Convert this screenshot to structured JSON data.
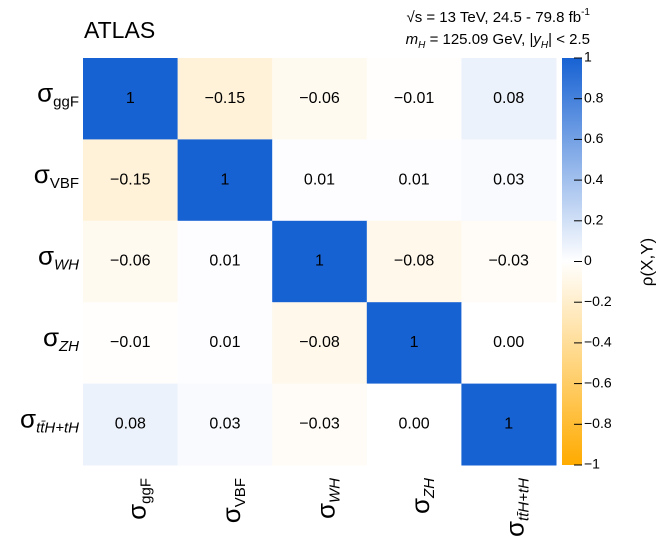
{
  "chart_data": {
    "type": "heatmap",
    "title": "ATLAS",
    "annotations": [
      [
        {
          "text": "√s = 13 TeV, 24.5 - 79.8 fb"
        },
        {
          "text": "-1",
          "script": "sup"
        }
      ],
      [
        {
          "text": "m",
          "italic": true
        },
        {
          "text": "H",
          "script": "sub",
          "italic": true
        },
        {
          "text": " = 125.09 GeV, |"
        },
        {
          "text": "y",
          "italic": true
        },
        {
          "text": "H",
          "script": "sub",
          "italic": true
        },
        {
          "text": "| < 2.5"
        }
      ]
    ],
    "categories": [
      {
        "symbol": "σ",
        "sub": "ggF",
        "italic": false
      },
      {
        "symbol": "σ",
        "sub": "VBF",
        "italic": false
      },
      {
        "symbol": "σ",
        "sub": "WH",
        "italic": true
      },
      {
        "symbol": "σ",
        "sub": "ZH",
        "italic": true
      },
      {
        "symbol": "σ",
        "sub": "tt̄H+tH",
        "italic": true
      }
    ],
    "values": [
      [
        1,
        -0.15,
        -0.06,
        -0.01,
        0.08
      ],
      [
        -0.15,
        1,
        0.01,
        0.01,
        0.03
      ],
      [
        -0.06,
        0.01,
        1,
        -0.08,
        -0.03
      ],
      [
        -0.01,
        0.01,
        -0.08,
        1,
        0.0
      ],
      [
        0.08,
        0.03,
        -0.03,
        0.0,
        1
      ]
    ],
    "value_labels": [
      [
        "1",
        "−0.15",
        "−0.06",
        "−0.01",
        "0.08"
      ],
      [
        "−0.15",
        "1",
        "0.01",
        "0.01",
        "0.03"
      ],
      [
        "−0.06",
        "0.01",
        "1",
        "−0.08",
        "−0.03"
      ],
      [
        "−0.01",
        "0.01",
        "−0.08",
        "1",
        "0.00"
      ],
      [
        "0.08",
        "0.03",
        "−0.03",
        "0.00",
        "1"
      ]
    ],
    "colormap": [
      "#ffab00",
      "#ffffff",
      "#1762d3"
    ],
    "zlim": [
      -1,
      1
    ],
    "zticks": [
      {
        "value": -1,
        "label": "−1"
      },
      {
        "value": -0.8,
        "label": "−0.8"
      },
      {
        "value": -0.6,
        "label": "−0.6"
      },
      {
        "value": -0.4,
        "label": "−0.4"
      },
      {
        "value": -0.2,
        "label": "−0.2"
      },
      0,
      0.2,
      0.4,
      0.6,
      0.8,
      1
    ],
    "colorbar_label": "ρ(X,Y)"
  }
}
